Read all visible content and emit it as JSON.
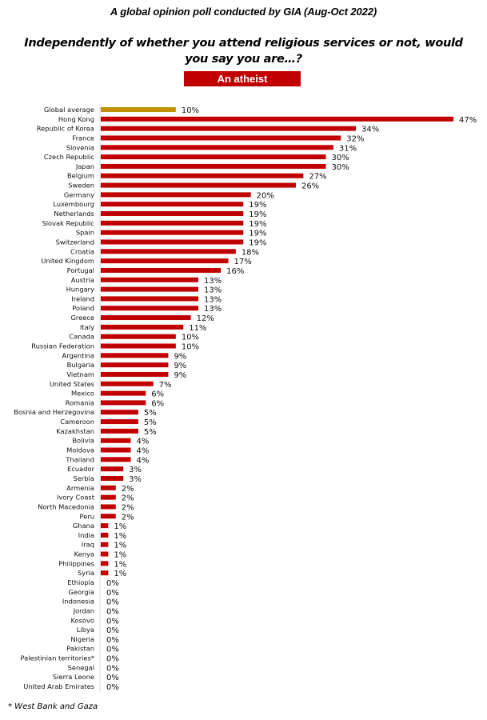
{
  "header": {
    "subtitle": "A global opinion poll conducted by GIA (Aug-Oct 2022)",
    "question": "Independently of whether you attend religious services or not, would you say you are…?",
    "badge": "An atheist"
  },
  "footnote": "* West Bank and Gaza",
  "colors": {
    "bar": "#c00000",
    "highlight_bar": "#bf9000",
    "badge": "#c00000",
    "axis": "#d9d9d9"
  },
  "chart_data": {
    "type": "bar",
    "orientation": "horizontal",
    "title": "An atheist",
    "xlabel": "",
    "ylabel": "",
    "xlim": [
      0,
      47
    ],
    "grid": false,
    "value_suffix": "%",
    "categories": [
      "Global average",
      "Hong Kong",
      "Republic of Korea",
      "France",
      "Slovenia",
      "Czech Republic",
      "Japan",
      "Belgium",
      "Sweden",
      "Germany",
      "Luxembourg",
      "Netherlands",
      "Slovak Republic",
      "Spain",
      "Switzerland",
      "Croatia",
      "United Kingdom",
      "Portugal",
      "Austria",
      "Hungary",
      "Ireland",
      "Poland",
      "Greece",
      "Italy",
      "Canada",
      "Russian Federation",
      "Argentina",
      "Bulgaria",
      "Vietnam",
      "United States",
      "Mexico",
      "Romania",
      "Bosnia and Herzegovina",
      "Cameroon",
      "Kazakhstan",
      "Bolivia",
      "Moldova",
      "Thailand",
      "Ecuador",
      "Serbia",
      "Armenia",
      "Ivory Coast",
      "North Macedonia",
      "Peru",
      "Ghana",
      "India",
      "Iraq",
      "Kenya",
      "Philippines",
      "Syria",
      "Ethiopia",
      "Georgia",
      "Indonesia",
      "Jordan",
      "Kosovo",
      "Libya",
      "Nigeria",
      "Pakistan",
      "Palestinian territories*",
      "Senegal",
      "Sierra Leone",
      "United Arab Emirates"
    ],
    "values": [
      10,
      47,
      34,
      32,
      31,
      30,
      30,
      27,
      26,
      20,
      19,
      19,
      19,
      19,
      19,
      18,
      17,
      16,
      13,
      13,
      13,
      13,
      12,
      11,
      10,
      10,
      9,
      9,
      9,
      7,
      6,
      6,
      5,
      5,
      5,
      4,
      4,
      4,
      3,
      3,
      2,
      2,
      2,
      2,
      1,
      1,
      1,
      1,
      1,
      1,
      0,
      0,
      0,
      0,
      0,
      0,
      0,
      0,
      0,
      0,
      0,
      0
    ],
    "highlight_index": 0
  }
}
